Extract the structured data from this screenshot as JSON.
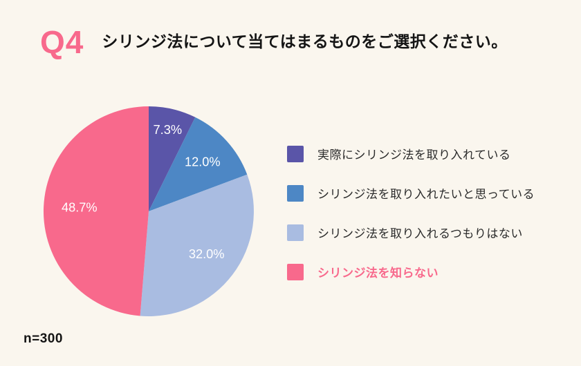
{
  "header": {
    "question_number": "Q4",
    "title": "シリンジ法について当てはまるものをご選択ください。"
  },
  "footer": {
    "sample_size_label": "n=300"
  },
  "colors": {
    "background": "#FAF6EE",
    "accent_pink": "#F8698C",
    "title_text": "#141414",
    "legend_text": "#2B2B2B"
  },
  "chart_data": {
    "type": "pie",
    "title": "シリンジ法について当てはまるものをご選択ください。",
    "sample_size": 300,
    "start_angle_deg": 0,
    "direction": "clockwise",
    "legend_position": "right",
    "label_text_color": "#FFFFFF",
    "segments": [
      {
        "label": "実際にシリンジ法を取り入れている",
        "value": 7.3,
        "display": "7.3%",
        "color": "#5A55A8",
        "label_radius": 0.79
      },
      {
        "label": "シリンジ法を取り入れたいと思っている",
        "value": 12.0,
        "display": "12.0%",
        "color": "#4D87C5",
        "label_radius": 0.69
      },
      {
        "label": "シリンジ法を取り入れるつもりはない",
        "value": 32.0,
        "display": "32.0%",
        "color": "#A9BCE1",
        "label_radius": 0.69
      },
      {
        "label": "シリンジ法を知らない",
        "value": 48.7,
        "display": "48.7%",
        "color": "#F8698C",
        "label_radius": 0.66,
        "label_color": "#F8698C",
        "label_bold": true
      }
    ]
  }
}
